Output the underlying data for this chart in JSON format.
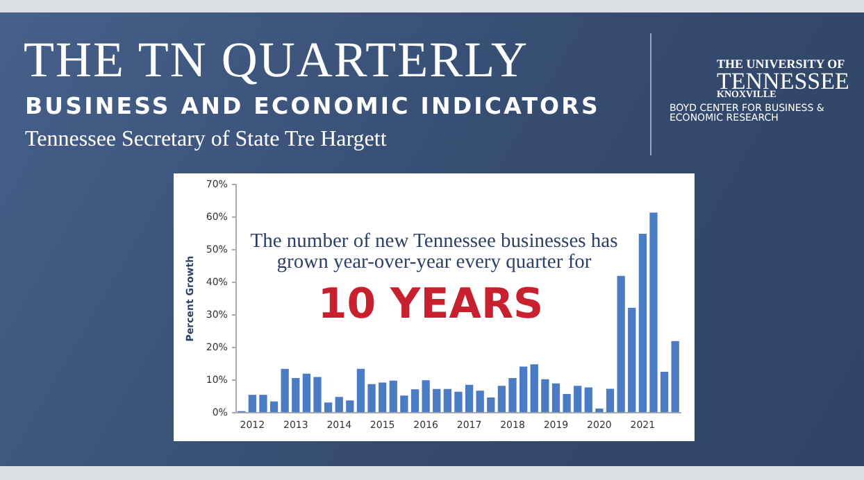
{
  "chart_data": {
    "type": "bar",
    "title": "THE TN QUARTERLY",
    "subtitle": "BUSINESS AND ECONOMIC INDICATORS",
    "ylabel": "Percent Growth",
    "annotations": [
      "Tennessee Secretary of State Tre Hargett",
      "THE UNIVERSITY OF",
      "TENNESSEE",
      "KNOXVILLE",
      "BOYD CENTER FOR BUSINESS & ECONOMIC RESEARCH",
      "The number of new Tennessee businesses has grown year-over-year every quarter for",
      "10 YEARS"
    ],
    "categories": [
      null,
      "2012",
      null,
      null,
      null,
      "2013",
      null,
      null,
      null,
      "2014",
      null,
      null,
      null,
      "2015",
      null,
      null,
      null,
      "2016",
      null,
      null,
      null,
      "2017",
      null,
      null,
      null,
      "2018",
      null,
      null,
      null,
      "2019",
      null,
      null,
      null,
      "2020",
      null,
      null,
      null,
      "2021",
      null,
      null,
      null
    ],
    "values": [
      0.5,
      5.5,
      5.5,
      3.5,
      13.5,
      10.7,
      12.0,
      11.0,
      3.2,
      4.9,
      3.8,
      13.5,
      8.8,
      9.3,
      9.9,
      5.3,
      7.2,
      10.0,
      7.3,
      7.3,
      6.5,
      8.6,
      6.8,
      4.7,
      8.3,
      10.7,
      14.2,
      14.9,
      10.3,
      9.0,
      5.8,
      8.3,
      7.8,
      1.3,
      7.4,
      42.0,
      32.2,
      54.9,
      61.4,
      12.6,
      22.0
    ],
    "color": "#4a7bc3",
    "ylim": [
      0,
      70
    ],
    "yticks": [
      {
        "value": 0,
        "label": "0%"
      },
      {
        "value": 10,
        "label": "10%"
      },
      {
        "value": 20,
        "label": "20%"
      },
      {
        "value": 30,
        "label": "30%"
      },
      {
        "value": 40,
        "label": "40%"
      },
      {
        "value": 50,
        "label": "50%"
      },
      {
        "value": 60,
        "label": "60%"
      },
      {
        "value": 70,
        "label": "70%"
      }
    ],
    "grid": false,
    "legend": false
  }
}
